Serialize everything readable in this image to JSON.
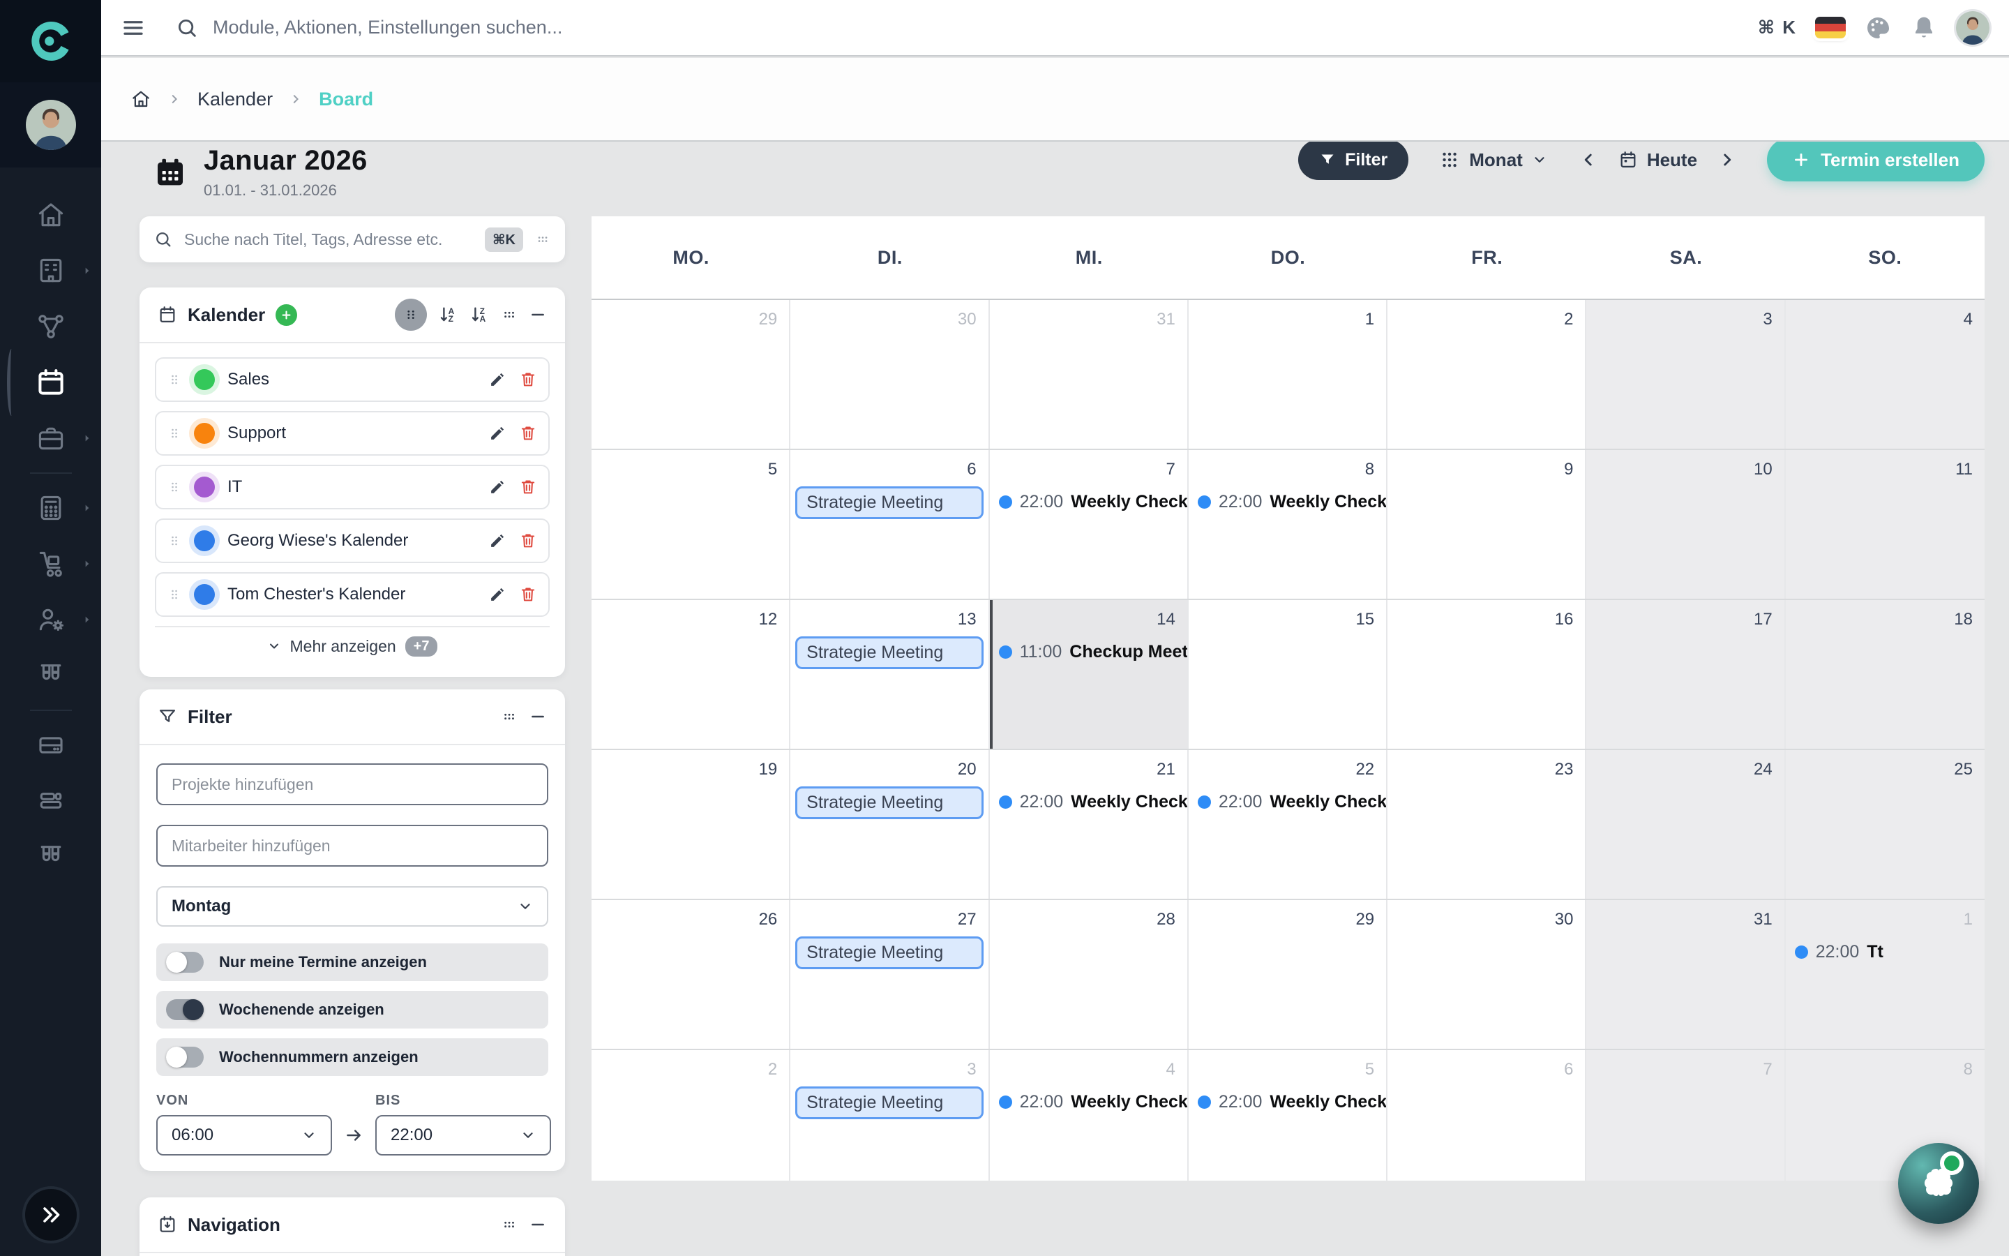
{
  "app": {
    "accent": "#4fc9be",
    "name_letter": "C"
  },
  "topbar": {
    "search_placeholder": "Module, Aktionen, Einstellungen suchen...",
    "shortcut": "⌘ K",
    "language_flag": "german-flag",
    "icons": [
      "menu-icon",
      "search-icon",
      "palette-icon",
      "bell-icon",
      "user-avatar"
    ]
  },
  "breadcrumb": {
    "items": [
      "Kalender",
      "Board"
    ]
  },
  "sidebar": {
    "items": [
      {
        "icon": "home"
      },
      {
        "icon": "building",
        "chevron": true
      },
      {
        "icon": "share"
      },
      {
        "icon": "calendar",
        "active": true
      },
      {
        "icon": "briefcase",
        "chevron": true
      },
      {
        "divider": true
      },
      {
        "icon": "calculator",
        "chevron": true
      },
      {
        "icon": "hand-truck",
        "chevron": true
      },
      {
        "icon": "user-gear",
        "chevron": true
      },
      {
        "icon": "test-tubes"
      },
      {
        "divider": true
      },
      {
        "icon": "server"
      },
      {
        "icon": "layers"
      },
      {
        "icon": "test-tubes"
      }
    ]
  },
  "header": {
    "title": "Januar 2026",
    "range": "01.01. - 31.01.2026"
  },
  "toolbar": {
    "filter_label": "Filter",
    "view_label": "Monat",
    "today_label": "Heute",
    "create_label": "Termin erstellen"
  },
  "calendars_panel": {
    "search_placeholder": "Suche nach Titel, Tags, Adresse etc.",
    "search_shortcut": "⌘K",
    "title": "Kalender",
    "items": [
      {
        "label": "Sales",
        "color": "#34c85a"
      },
      {
        "label": "Support",
        "color": "#f8830d"
      },
      {
        "label": "IT",
        "color": "#a45ad0"
      },
      {
        "label": "Georg Wiese's Kalender",
        "color": "#2f7ce8"
      },
      {
        "label": "Tom Chester's Kalender",
        "color": "#2f7ce8"
      }
    ],
    "more_label": "Mehr anzeigen",
    "more_badge": "+7"
  },
  "filter_panel": {
    "title": "Filter",
    "project_placeholder": "Projekte hinzufügen",
    "employee_placeholder": "Mitarbeiter hinzufügen",
    "weekday_value": "Montag",
    "toggles": [
      {
        "label": "Nur meine Termine anzeigen",
        "on": false
      },
      {
        "label": "Wochenende anzeigen",
        "on": true
      },
      {
        "label": "Wochennummern anzeigen",
        "on": false
      }
    ],
    "from_label": "VON",
    "from_value": "06:00",
    "to_label": "BIS",
    "to_value": "22:00"
  },
  "navigation_panel": {
    "title": "Navigation"
  },
  "calendar": {
    "day_headers": [
      "MO.",
      "DI.",
      "MI.",
      "DO.",
      "FR.",
      "SA.",
      "SO."
    ],
    "event_colors": {
      "dot": "#2e8cf6",
      "block_bg": "#dceafd",
      "block_border": "#5e9cf2"
    },
    "weeks": [
      [
        {
          "day": "29",
          "muted": true
        },
        {
          "day": "30",
          "muted": true
        },
        {
          "day": "31",
          "muted": true
        },
        {
          "day": "1"
        },
        {
          "day": "2"
        },
        {
          "day": "3"
        },
        {
          "day": "4"
        }
      ],
      [
        {
          "day": "5"
        },
        {
          "day": "6",
          "events": [
            {
              "kind": "block",
              "title": "Strategie Meeting"
            }
          ]
        },
        {
          "day": "7",
          "events": [
            {
              "kind": "dot",
              "time": "22:00",
              "title": "Weekly Check"
            }
          ]
        },
        {
          "day": "8",
          "events": [
            {
              "kind": "dot",
              "time": "22:00",
              "title": "Weekly Check"
            }
          ]
        },
        {
          "day": "9"
        },
        {
          "day": "10"
        },
        {
          "day": "11"
        }
      ],
      [
        {
          "day": "12"
        },
        {
          "day": "13",
          "events": [
            {
              "kind": "block",
              "title": "Strategie Meeting"
            }
          ]
        },
        {
          "day": "14",
          "today": true,
          "events": [
            {
              "kind": "dot",
              "time": "11:00",
              "title": "Checkup Meeting"
            }
          ]
        },
        {
          "day": "15"
        },
        {
          "day": "16"
        },
        {
          "day": "17"
        },
        {
          "day": "18"
        }
      ],
      [
        {
          "day": "19"
        },
        {
          "day": "20",
          "events": [
            {
              "kind": "block",
              "title": "Strategie Meeting"
            }
          ]
        },
        {
          "day": "21",
          "events": [
            {
              "kind": "dot",
              "time": "22:00",
              "title": "Weekly Check"
            }
          ]
        },
        {
          "day": "22",
          "events": [
            {
              "kind": "dot",
              "time": "22:00",
              "title": "Weekly Check"
            }
          ]
        },
        {
          "day": "23"
        },
        {
          "day": "24"
        },
        {
          "day": "25"
        }
      ],
      [
        {
          "day": "26"
        },
        {
          "day": "27",
          "events": [
            {
              "kind": "block",
              "title": "Strategie Meeting"
            }
          ]
        },
        {
          "day": "28"
        },
        {
          "day": "29"
        },
        {
          "day": "30"
        },
        {
          "day": "31"
        },
        {
          "day": "1",
          "muted": true,
          "events": [
            {
              "kind": "dot",
              "time": "22:00",
              "title": "Tt"
            }
          ]
        }
      ],
      [
        {
          "day": "2",
          "muted": true
        },
        {
          "day": "3",
          "muted": true,
          "events": [
            {
              "kind": "block",
              "title": "Strategie Meeting"
            }
          ]
        },
        {
          "day": "4",
          "muted": true,
          "events": [
            {
              "kind": "dot",
              "time": "22:00",
              "title": "Weekly Check"
            }
          ]
        },
        {
          "day": "5",
          "muted": true,
          "events": [
            {
              "kind": "dot",
              "time": "22:00",
              "title": "Weekly Check"
            }
          ]
        },
        {
          "day": "6",
          "muted": true
        },
        {
          "day": "7",
          "muted": true
        },
        {
          "day": "8",
          "muted": true
        }
      ]
    ]
  },
  "assistant": {
    "status_color": "#1fa95c"
  }
}
